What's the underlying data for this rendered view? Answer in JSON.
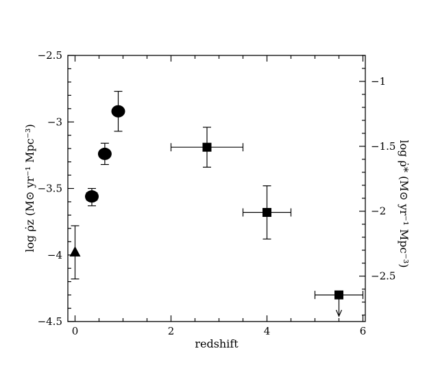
{
  "chart_data": {
    "type": "scatter",
    "xlabel": "redshift",
    "ylabel": "log ρ̇z (M⊙ yr⁻¹ Mpc⁻³)",
    "ylabel_right": "log ρ̇* (M⊙ yr⁻¹ Mpc⁻³)",
    "xlim": [
      -0.15,
      6.05
    ],
    "ylim": [
      -4.5,
      -2.5
    ],
    "ylim_right": [
      -2.85,
      -0.8
    ],
    "x_ticks": [
      0,
      2,
      4,
      6
    ],
    "x_tick_labels": [
      "0",
      "2",
      "4",
      "6"
    ],
    "y_ticks": [
      -4.5,
      -4,
      -3.5,
      -3,
      -2.5
    ],
    "y_tick_labels": [
      "-4.5",
      "-4",
      "-3.5",
      "-3",
      "-2.5"
    ],
    "y_right_ticks": [
      -2.5,
      -2,
      -1.5,
      -1
    ],
    "y_right_tick_labels": [
      "-2.5",
      "-2",
      "-1.5",
      "-1"
    ],
    "grid": false,
    "legend": "none",
    "series": [
      {
        "marker": "triangle",
        "points": [
          {
            "x": 0.0,
            "y": -3.98,
            "ylo": -4.18,
            "yhi": -3.78
          }
        ]
      },
      {
        "marker": "circle",
        "points": [
          {
            "x": 0.35,
            "y": -3.56,
            "ylo": -3.63,
            "yhi": -3.5,
            "xlo": 0.24,
            "xhi": 0.46
          },
          {
            "x": 0.62,
            "y": -3.24,
            "ylo": -3.32,
            "yhi": -3.16
          },
          {
            "x": 0.9,
            "y": -2.92,
            "ylo": -3.07,
            "yhi": -2.77
          }
        ]
      },
      {
        "marker": "square",
        "points": [
          {
            "x": 2.75,
            "y": -3.19,
            "ylo": -3.34,
            "yhi": -3.04,
            "xlo": 2.0,
            "xhi": 3.5
          },
          {
            "x": 4.0,
            "y": -3.68,
            "ylo": -3.88,
            "yhi": -3.48,
            "xlo": 3.5,
            "xhi": 4.5
          },
          {
            "x": 5.5,
            "y": -4.3,
            "xlo": 5.0,
            "xhi": 6.0,
            "upper_limit": true
          }
        ]
      }
    ]
  }
}
